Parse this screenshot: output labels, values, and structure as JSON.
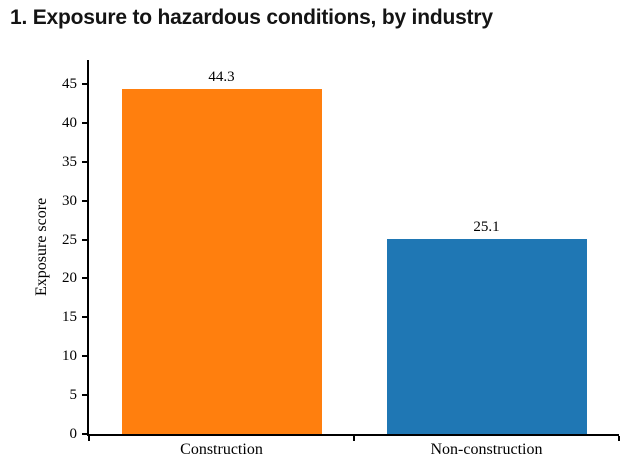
{
  "chart_data": {
    "type": "bar",
    "title": "1. Exposure to hazardous conditions, by industry",
    "categories": [
      "Construction",
      "Non-construction"
    ],
    "values": [
      44.3,
      25.1
    ],
    "value_labels": [
      "44.3",
      "25.1"
    ],
    "bar_colors": [
      "#ff7f0e",
      "#1f77b4"
    ],
    "xlabel": "",
    "ylabel": "Exposure score",
    "ylim": [
      0,
      45
    ],
    "yticks": [
      0,
      5,
      10,
      15,
      20,
      25,
      30,
      35,
      40,
      45
    ],
    "grid": false,
    "legend_position": "none",
    "axis_color": "#000000",
    "background_color": "#ffffff"
  }
}
